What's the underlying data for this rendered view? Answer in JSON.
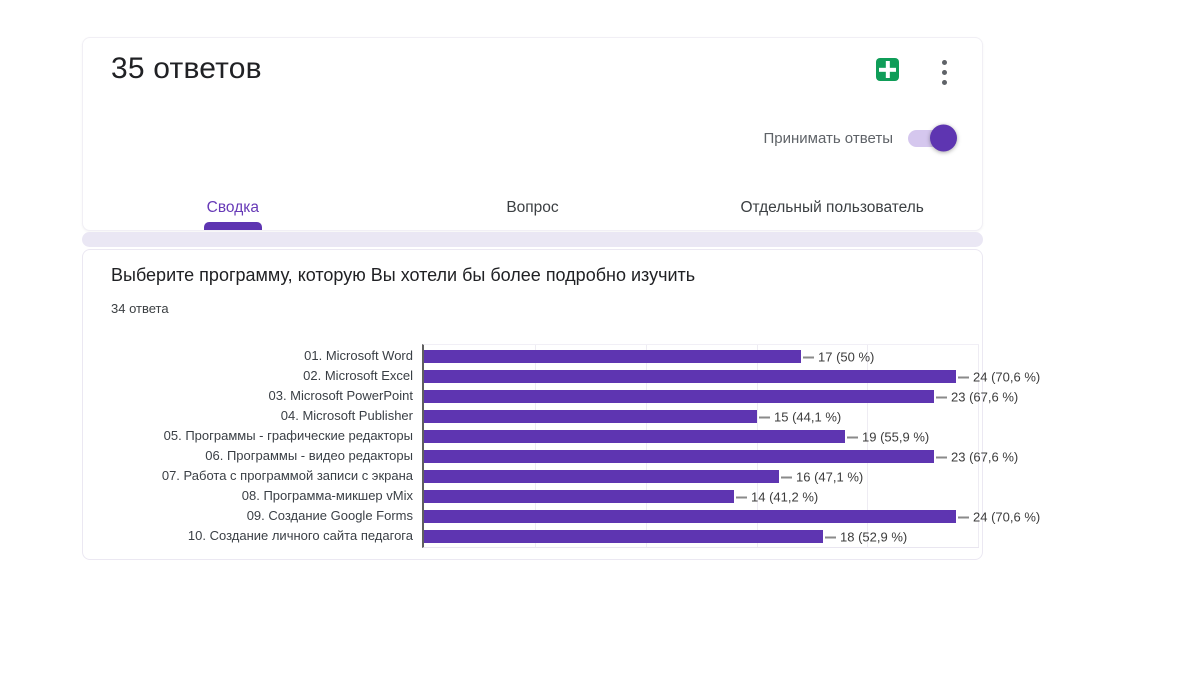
{
  "header": {
    "title": "35 ответов"
  },
  "toolbar": {
    "accept_responses_label": "Принимать ответы",
    "accept_responses_enabled": true
  },
  "icons": {
    "sheets_icon": "create-spreadsheet-icon",
    "more_icon": "more-vertical-icon",
    "toggle_icon": "toggle-on-switch"
  },
  "tabs": [
    {
      "label": "Сводка",
      "active": true
    },
    {
      "label": "Вопрос",
      "active": false
    },
    {
      "label": "Отдельный пользователь",
      "active": false
    }
  ],
  "question": {
    "title": "Выберите программу, которую Вы хотели бы более подробно изучить",
    "responses_label": "34 ответа"
  },
  "colors": {
    "accent": "#5e35b1",
    "tab_active": "#673ab7",
    "bar": "#5e35b1",
    "toggle_track": "#d5c7ee",
    "sheets_green": "#0f9d58",
    "strip": "#eae7f4"
  },
  "chart_data": {
    "type": "bar",
    "orientation": "horizontal",
    "title": "Выберите программу, которую Вы хотели бы более подробно изучить",
    "total_responses": 34,
    "categories": [
      "01. Microsoft Word",
      "02. Microsoft Excel",
      "03. Microsoft PowerPoint",
      "04. Microsoft Publisher",
      "05. Программы - графические редакторы",
      "06. Программы - видео редакторы",
      "07. Работа с программой записи с экрана",
      "08. Программа-микшер vMix",
      "09. Создание Google Forms",
      "10. Создание личного сайта педагога"
    ],
    "values": [
      17,
      24,
      23,
      15,
      19,
      23,
      16,
      14,
      24,
      18
    ],
    "percentages": [
      50,
      70.6,
      67.6,
      44.1,
      55.9,
      67.6,
      47.1,
      41.2,
      70.6,
      52.9
    ],
    "value_labels": [
      "17 (50 %)",
      "24 (70,6 %)",
      "23 (67,6 %)",
      "15 (44,1 %)",
      "19 (55,9 %)",
      "23 (67,6 %)",
      "16 (47,1 %)",
      "14 (41,2 %)",
      "24 (70,6 %)",
      "18 (52,9 %)"
    ],
    "xlim": [
      0,
      25
    ],
    "gridlines": [
      5,
      10,
      15,
      20,
      25
    ],
    "grid": true,
    "legend": "none",
    "bar_color": "#5e35b1"
  }
}
